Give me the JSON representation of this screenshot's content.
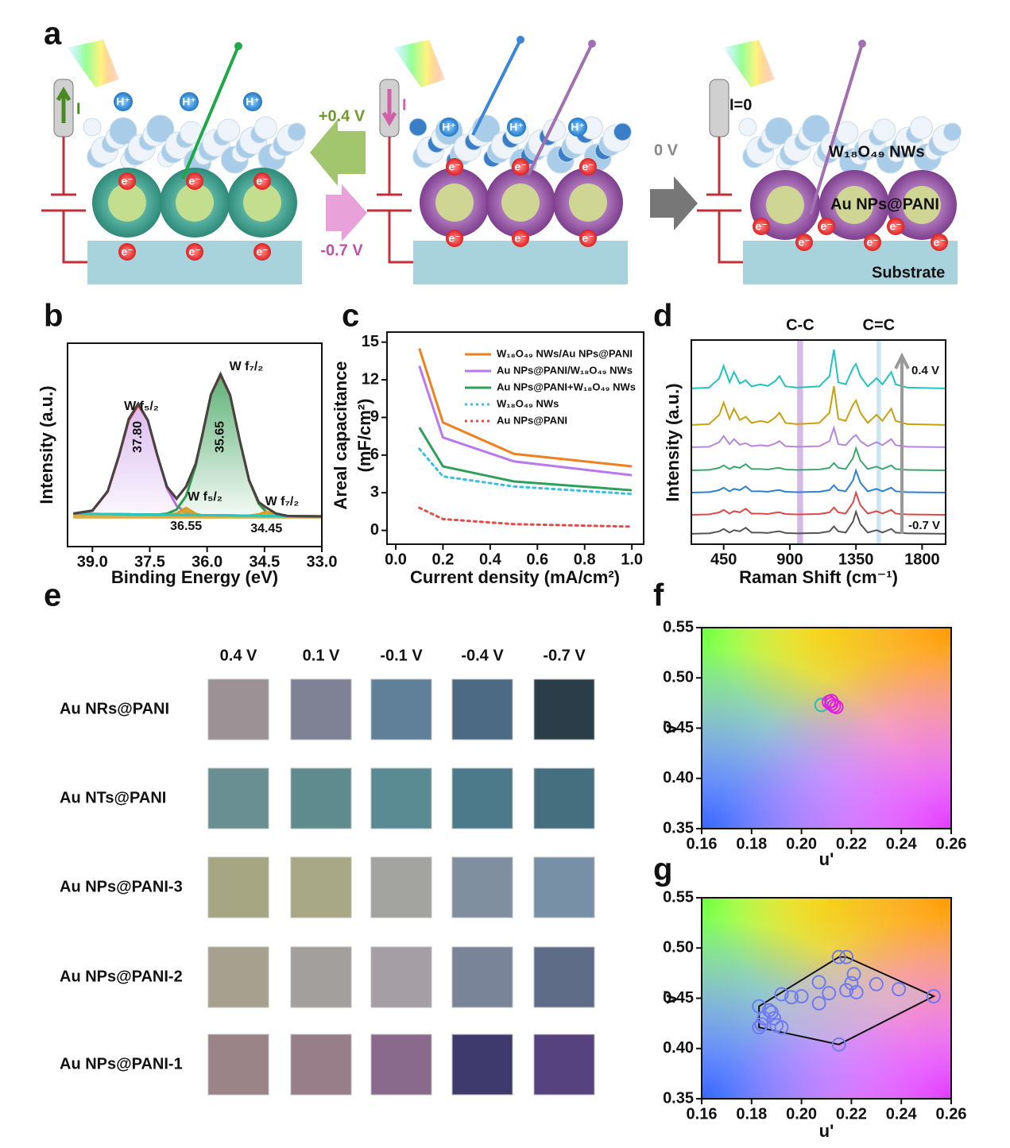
{
  "panel_labels": [
    "a",
    "b",
    "c",
    "d",
    "e",
    "f",
    "g"
  ],
  "schematic": {
    "potentials": [
      "+0.4 V",
      "-0.7 V",
      "0 V"
    ],
    "current_label": "I",
    "zero_current_label": "I=0",
    "proton": "H⁺",
    "electron": "e⁻",
    "layer_labels": [
      "W₁₈O₄₉ NWs",
      "Au NPs@PANI",
      "Substrate"
    ]
  },
  "color_table": {
    "columns": [
      "0.4 V",
      "0.1 V",
      "-0.1 V",
      "-0.4 V",
      "-0.7 V"
    ],
    "rows": [
      {
        "label": "Au NRs@PANI",
        "colors": [
          "#9c9296",
          "#7f8294",
          "#607f99",
          "#4d6a84",
          "#2c3d4a"
        ]
      },
      {
        "label": "Au NTs@PANI",
        "colors": [
          "#6a8f93",
          "#5f8b8f",
          "#5a8a92",
          "#4d7a8a",
          "#456e7e"
        ]
      },
      {
        "label": "Au NPs@PANI-3",
        "colors": [
          "#a6a682",
          "#a9a886",
          "#a3a3a0",
          "#7f8fa0",
          "#7890a5"
        ]
      },
      {
        "label": "Au NPs@PANI-2",
        "colors": [
          "#a7a08f",
          "#a39f9c",
          "#a59ea4",
          "#7a8499",
          "#5f6c88"
        ]
      },
      {
        "label": "Au NPs@PANI-1",
        "colors": [
          "#9a8488",
          "#977e88",
          "#8a6a8c",
          "#3f3a6e",
          "#55427e"
        ]
      }
    ]
  },
  "chart_data": [
    {
      "type": "line",
      "xlabel": "Binding Energy (eV)",
      "ylabel": [
        "Intensity (a.u.)"
      ],
      "x": [
        39.5,
        39,
        38.6,
        38.3,
        38.05,
        37.8,
        37.55,
        37.3,
        37.05,
        36.8,
        36.55,
        36.3,
        36.15,
        35.9,
        35.65,
        35.4,
        35.15,
        34.9,
        34.65,
        34.45,
        34.2,
        33.9,
        33.5,
        33.0
      ],
      "series": [
        {
          "color": "#b36ee0",
          "fill": true,
          "values": [
            0.035,
            0.055,
            0.192,
            0.451,
            0.7,
            0.809,
            0.699,
            0.448,
            0.217,
            0.092,
            0.042,
            0.028,
            0.024,
            0.024,
            0.023,
            0.022,
            0.021,
            0.021,
            0.02,
            0.019,
            0.019,
            0.018,
            0.017,
            0.015
          ]
        },
        {
          "color": "#2e9a4e",
          "fill": true,
          "values": [
            0.035,
            0.033,
            0.032,
            0.031,
            0.03,
            0.029,
            0.029,
            0.028,
            0.035,
            0.064,
            0.161,
            0.375,
            0.563,
            0.881,
            1.023,
            0.879,
            0.56,
            0.27,
            0.105,
            0.047,
            0.025,
            0.018,
            0.017,
            0.015
          ]
        },
        {
          "color": "#d9a020",
          "fill": true,
          "values": [
            0.035,
            0.033,
            0.032,
            0.031,
            0.03,
            0.029,
            0.029,
            0.028,
            0.027,
            0.036,
            0.076,
            0.035,
            0.024,
            0.024,
            0.023,
            0.022,
            0.021,
            0.021,
            0.03,
            0.049,
            0.029,
            0.018,
            0.017,
            0.015
          ]
        },
        {
          "color": "#1fc7c7",
          "values": [
            0.035,
            0.033,
            0.032,
            0.031,
            0.03,
            0.029,
            0.029,
            0.028,
            0.027,
            0.026,
            0.026,
            0.025,
            0.024,
            0.024,
            0.023,
            0.022,
            0.021,
            0.021,
            0.02,
            0.019,
            0.019,
            0.018,
            0.017,
            0.015
          ]
        },
        {
          "color": "#e03a2a",
          "values": [
            0.035,
            0.055,
            0.192,
            0.451,
            0.7,
            0.809,
            0.699,
            0.448,
            0.225,
            0.14,
            0.227,
            0.388,
            0.563,
            0.881,
            1.023,
            0.879,
            0.56,
            0.27,
            0.115,
            0.077,
            0.035,
            0.018,
            0.017,
            0.015
          ]
        },
        {
          "color": "#444444",
          "values": [
            0.036,
            0.057,
            0.195,
            0.455,
            0.71,
            0.82,
            0.7,
            0.45,
            0.227,
            0.142,
            0.229,
            0.39,
            0.565,
            0.885,
            1.03,
            0.882,
            0.562,
            0.272,
            0.117,
            0.078,
            0.036,
            0.019,
            0.017,
            0.016
          ]
        }
      ],
      "xlim": [
        39.65,
        33.0
      ],
      "ylim": [
        -0.2,
        1.25
      ],
      "xticks": [
        {
          "value": 39,
          "label": "39.0"
        },
        37.5,
        {
          "value": 36,
          "label": "36.0"
        },
        34.5,
        {
          "value": 33,
          "label": "33.0"
        }
      ],
      "annotations": [
        "W f₅/₂",
        "W f₇/₂",
        "W f₅/₂",
        "W f₇/₂"
      ],
      "peak_labels": [
        {
          "value": 37.8,
          "label": "37.80"
        },
        {
          "value": 35.65,
          "label": "35.65"
        },
        {
          "value": 36.55,
          "label": "36.55"
        },
        {
          "value": 34.45,
          "label": "34.45"
        }
      ]
    },
    {
      "type": "line",
      "xlabel": "Current density (mA/cm²)",
      "ylabel": [
        "Areal capacitance",
        "(mF/cm²)"
      ],
      "x": [
        0.1,
        0.2,
        0.5,
        1.0
      ],
      "series": [
        {
          "name": "W₁₈O₄₉ NWs/Au NPs@PANI",
          "color": "#f07f1e",
          "values": [
            14.5,
            8.6,
            6.1,
            5.1
          ]
        },
        {
          "name": "Au NPs@PANI/W₁₈O₄₉ NWs",
          "color": "#b978f0",
          "values": [
            13.1,
            7.4,
            5.5,
            4.4
          ]
        },
        {
          "name": "Au NPs@PANI+W₁₈O₄₉ NWs",
          "color": "#2fa05a",
          "values": [
            8.2,
            5.1,
            3.9,
            3.2
          ]
        },
        {
          "name": "W₁₈O₄₉ NWs",
          "color": "#3cbde8",
          "dash": "dotted",
          "values": [
            6.5,
            4.3,
            3.5,
            2.9
          ]
        },
        {
          "name": "Au NPs@PANI",
          "color": "#e84848",
          "dash": "dotted",
          "values": [
            1.8,
            0.9,
            0.5,
            0.3
          ]
        }
      ],
      "xlim": [
        -0.037,
        1.05
      ],
      "ylim": [
        -1.1,
        15.8
      ],
      "xticks": [
        {
          "value": 0,
          "label": "0.0"
        },
        0.2,
        0.4,
        0.6,
        0.8,
        {
          "value": 1,
          "label": "1.0"
        }
      ],
      "yticks": [
        0,
        3,
        6,
        9,
        12,
        15
      ],
      "legend": "upper right"
    },
    {
      "type": "line",
      "xlabel": "Raman Shift (cm⁻¹)",
      "ylabel": [
        "Intensity (a.u.)"
      ],
      "x": [
        230,
        350,
        420,
        450,
        490,
        520,
        560,
        600,
        640,
        700,
        750,
        800,
        830,
        870,
        950,
        1100,
        1170,
        1200,
        1230,
        1280,
        1330,
        1350,
        1380,
        1430,
        1490,
        1530,
        1590,
        1620,
        1700,
        1960
      ],
      "series": [
        {
          "color": "#22c3c3",
          "values": [
            7.63,
            7.67,
            8.13,
            8.73,
            7.93,
            8.43,
            7.87,
            8.03,
            7.73,
            7.83,
            7.75,
            7.99,
            8.23,
            7.73,
            7.67,
            7.73,
            8.23,
            9.53,
            7.93,
            7.83,
            8.63,
            8.83,
            8.23,
            7.73,
            8.13,
            7.83,
            8.43,
            7.83,
            7.67,
            7.63
          ]
        },
        {
          "color": "#c9a010",
          "values": [
            5.84,
            5.88,
            6.34,
            6.94,
            6.14,
            6.64,
            6.08,
            6.24,
            5.94,
            6.04,
            5.96,
            6.2,
            6.44,
            5.94,
            5.88,
            5.94,
            6.44,
            7.74,
            6.14,
            6.04,
            6.84,
            7.04,
            6.44,
            5.94,
            6.34,
            6.04,
            6.64,
            6.04,
            5.88,
            5.84
          ]
        },
        {
          "color": "#b784e0",
          "values": [
            4.75,
            4.77,
            5.0,
            5.3,
            4.9,
            5.15,
            4.87,
            4.95,
            4.8,
            4.85,
            4.81,
            4.93,
            5.05,
            4.8,
            4.77,
            4.8,
            5.05,
            5.7,
            4.9,
            4.85,
            5.25,
            5.35,
            5.05,
            4.8,
            5.0,
            4.85,
            5.15,
            4.85,
            4.77,
            4.75
          ]
        },
        {
          "color": "#3aa86a",
          "values": [
            3.62,
            3.64,
            3.74,
            3.86,
            3.68,
            3.8,
            3.74,
            3.92,
            3.68,
            3.68,
            3.66,
            3.72,
            3.74,
            3.66,
            3.64,
            3.66,
            3.74,
            3.98,
            3.74,
            3.68,
            4.22,
            4.7,
            4.1,
            3.68,
            3.8,
            3.68,
            3.86,
            3.68,
            3.64,
            3.62
          ]
        },
        {
          "color": "#2f7fd6",
          "values": [
            2.53,
            2.55,
            2.65,
            2.77,
            2.59,
            2.71,
            2.65,
            2.83,
            2.59,
            2.59,
            2.57,
            2.63,
            2.65,
            2.57,
            2.55,
            2.57,
            2.65,
            2.89,
            2.65,
            2.59,
            3.13,
            3.61,
            3.01,
            2.59,
            2.71,
            2.59,
            2.77,
            2.59,
            2.55,
            2.53
          ]
        },
        {
          "color": "#e04848",
          "values": [
            1.44,
            1.46,
            1.56,
            1.68,
            1.5,
            1.62,
            1.56,
            1.74,
            1.5,
            1.5,
            1.48,
            1.54,
            1.56,
            1.48,
            1.46,
            1.48,
            1.56,
            1.8,
            1.56,
            1.5,
            2.04,
            2.52,
            1.92,
            1.5,
            1.62,
            1.5,
            1.68,
            1.5,
            1.46,
            1.44
          ]
        },
        {
          "color": "#555555",
          "values": [
            0.51,
            0.53,
            0.63,
            0.75,
            0.57,
            0.69,
            0.63,
            0.81,
            0.57,
            0.57,
            0.55,
            0.61,
            0.63,
            0.55,
            0.53,
            0.55,
            0.63,
            0.87,
            0.63,
            0.57,
            1.11,
            1.59,
            0.99,
            0.57,
            0.69,
            0.57,
            0.75,
            0.57,
            0.53,
            0.51
          ]
        }
      ],
      "xlim": [
        230,
        1960
      ],
      "ylim": [
        0,
        10
      ],
      "xticks": [
        450,
        900,
        1350,
        1800
      ],
      "bands": [
        {
          "label": "C-C",
          "range": [
            950,
            990
          ],
          "color": "#c9a6e0"
        },
        {
          "label": "C=C",
          "range": [
            1490,
            1520
          ],
          "color": "#bfe0ee"
        }
      ],
      "annotations": [
        "0.4 V",
        "-0.7 V"
      ]
    },
    {
      "type": "scatter",
      "xlabel": "u'",
      "ylabel": [
        "v'"
      ],
      "background": "chromaticity",
      "series": [
        {
          "color": "#20c0c0",
          "x": [
            0.208
          ],
          "values": [
            0.473
          ]
        },
        {
          "color": "#e020e0",
          "x": [
            0.211,
            0.212,
            0.213,
            0.214,
            0.212
          ],
          "values": [
            0.476,
            0.474,
            0.472,
            0.471,
            0.477
          ]
        }
      ],
      "xlim": [
        0.16,
        0.26
      ],
      "ylim": [
        0.35,
        0.55
      ],
      "xticks": [
        0.16,
        0.18,
        {
          "value": 0.2,
          "label": "0.20"
        },
        0.22,
        0.24,
        0.26
      ],
      "yticks": [
        0.35,
        {
          "value": 0.4,
          "label": "0.40"
        },
        0.45,
        {
          "value": 0.5,
          "label": "0.50"
        },
        0.55
      ]
    },
    {
      "type": "scatter",
      "xlabel": "u'",
      "ylabel": [
        "v'"
      ],
      "background": "chromaticity",
      "hull": true,
      "series": [
        {
          "color": "#6f7cf0",
          "x": [
            0.183,
            0.183,
            0.184,
            0.185,
            0.187,
            0.188,
            0.189,
            0.19,
            0.192,
            0.192,
            0.196,
            0.2,
            0.207,
            0.207,
            0.211,
            0.215,
            0.215,
            0.218,
            0.218,
            0.22,
            0.221,
            0.222,
            0.23,
            0.239,
            0.253
          ],
          "values": [
            0.442,
            0.421,
            0.424,
            0.43,
            0.438,
            0.436,
            0.43,
            0.423,
            0.421,
            0.454,
            0.451,
            0.452,
            0.466,
            0.445,
            0.455,
            0.404,
            0.491,
            0.491,
            0.458,
            0.465,
            0.474,
            0.456,
            0.464,
            0.459,
            0.452
          ]
        }
      ],
      "xlim": [
        0.16,
        0.26
      ],
      "ylim": [
        0.35,
        0.55
      ],
      "xticks": [
        0.16,
        0.18,
        {
          "value": 0.2,
          "label": "0.20"
        },
        0.22,
        0.24,
        0.26
      ],
      "yticks": [
        0.35,
        {
          "value": 0.4,
          "label": "0.40"
        },
        0.45,
        {
          "value": 0.5,
          "label": "0.50"
        },
        0.55
      ]
    }
  ]
}
